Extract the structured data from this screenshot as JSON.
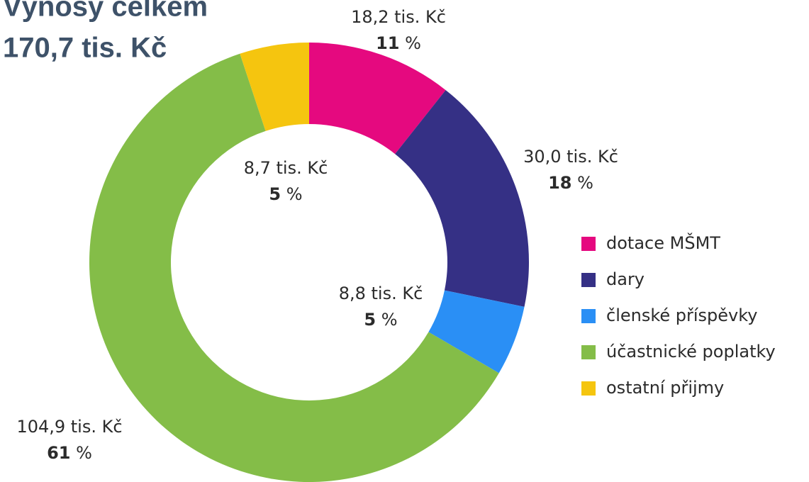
{
  "chart_data": {
    "type": "donut",
    "title": "Výnosy celkem",
    "subtitle": "170,7 tis. Kč",
    "categories": [
      "dotace MŠMT",
      "dary",
      "členské příspěvky",
      "účastnické poplatky",
      "ostatní přijmy"
    ],
    "values": [
      18.2,
      30.0,
      8.8,
      104.9,
      8.7
    ],
    "value_labels": [
      "18,2 tis. Kč",
      "30,0 tis. Kč",
      "8,8 tis. Kč",
      "104,9 tis. Kč",
      "8,7 tis. Kč"
    ],
    "percents": [
      11,
      18,
      5,
      61,
      5
    ],
    "percent_unit": "%",
    "colors": [
      "#e5097f",
      "#353085",
      "#2a8ff5",
      "#84bd48",
      "#f5c50f"
    ],
    "legend": "right"
  }
}
